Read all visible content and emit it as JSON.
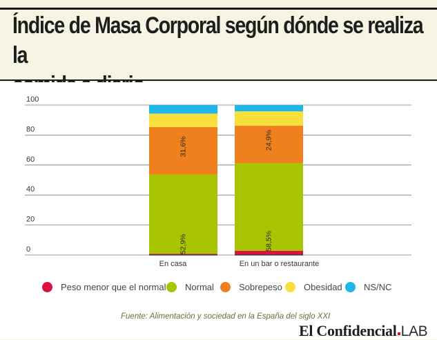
{
  "header": {
    "title_line1": "Índice de Masa Corporal según dónde se realiza la",
    "title_line2": "comida a diario"
  },
  "chart_data": {
    "type": "bar",
    "stacked": true,
    "categories": [
      "En casa",
      "En un bar o restaurante"
    ],
    "series": [
      {
        "name": "Peso menor que el normal",
        "color": "#d9123f",
        "values": [
          0.8,
          2.8
        ],
        "labels": [
          "",
          ""
        ]
      },
      {
        "name": "Normal",
        "color": "#a9c400",
        "values": [
          52.9,
          58.5
        ],
        "labels": [
          "52,9%",
          "58,5%"
        ]
      },
      {
        "name": "Sobrepeso",
        "color": "#f07f1d",
        "values": [
          31.6,
          24.9
        ],
        "labels": [
          "31,6%",
          "24,9%"
        ]
      },
      {
        "name": "Obesidad",
        "color": "#f8df3c",
        "values": [
          9.0,
          9.6
        ],
        "labels": [
          "",
          ""
        ]
      },
      {
        "name": "NS/NC",
        "color": "#1eb7e8",
        "values": [
          5.7,
          4.2
        ],
        "labels": [
          "",
          ""
        ]
      }
    ],
    "yticks": [
      0,
      20,
      40,
      60,
      80,
      100
    ],
    "ylim": [
      0,
      100
    ],
    "xlabel": "",
    "ylabel": ""
  },
  "footer": {
    "source": "Fuente: Alimentación y sociedad en la España del siglo XXI",
    "logo_main": "El Confidencial",
    "logo_sub": "LAB",
    "brand_color": "#d4121a"
  }
}
